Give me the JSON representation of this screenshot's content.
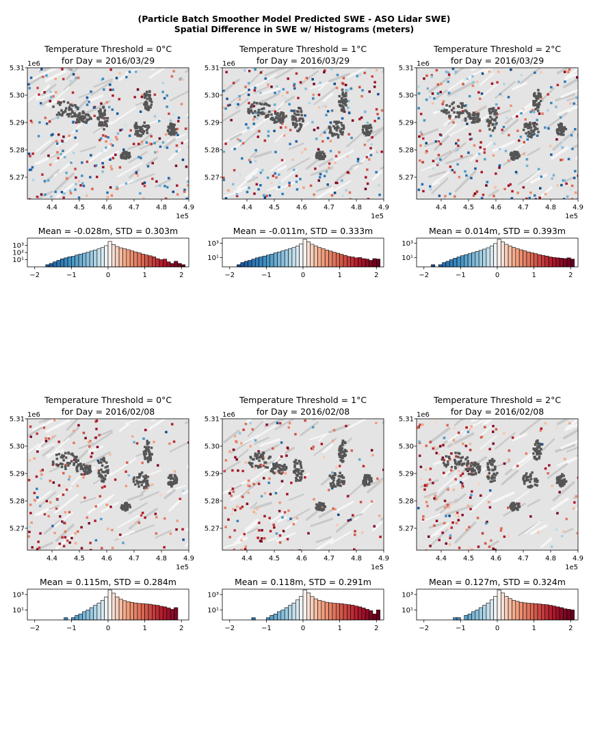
{
  "figure": {
    "suptitle_line1": "(Particle Batch Smoother Model Predicted SWE - ASO Lidar SWE)",
    "suptitle_line2": "Spatial Difference in SWE w/ Histograms (meters)"
  },
  "colors": {
    "negative_extreme": "#2b6aa8",
    "neutral": "#f7f7f7",
    "positive_extreme": "#7a0a1c",
    "masked_cells": "#555555",
    "hillshade": "#e4e4e4"
  },
  "chart_data": [
    {
      "type": "heatmap",
      "row": 1,
      "col": 1,
      "title_line1": "Temperature Threshold = 0°C",
      "title_line2": "for Day = 2016/03/29",
      "x_ticks": [
        "4.4",
        "4.5",
        "4.6",
        "4.7",
        "4.8",
        "4.9"
      ],
      "x_offset": "1e5",
      "y_ticks": [
        "5.31",
        "5.30",
        "5.29",
        "5.28",
        "5.27"
      ],
      "y_offset": "1e6",
      "xlim": [
        431000,
        490000
      ],
      "ylim": [
        5262000,
        5310000
      ],
      "colormap": "RdBu_r",
      "vmin": -2,
      "vmax": 2
    },
    {
      "type": "heatmap",
      "row": 1,
      "col": 2,
      "title_line1": "Temperature Threshold = 1°C",
      "title_line2": "for Day = 2016/03/29",
      "x_ticks": [
        "4.4",
        "4.5",
        "4.6",
        "4.7",
        "4.8",
        "4.9"
      ],
      "x_offset": "1e5",
      "y_ticks": [
        "5.31",
        "5.30",
        "5.29",
        "5.28",
        "5.27"
      ],
      "y_offset": "1e6",
      "xlim": [
        431000,
        490000
      ],
      "ylim": [
        5262000,
        5310000
      ],
      "colormap": "RdBu_r",
      "vmin": -2,
      "vmax": 2
    },
    {
      "type": "heatmap",
      "row": 1,
      "col": 3,
      "title_line1": "Temperature Threshold = 2°C",
      "title_line2": "for Day = 2016/03/29",
      "x_ticks": [
        "4.4",
        "4.5",
        "4.6",
        "4.7",
        "4.8",
        "4.9"
      ],
      "x_offset": "1e5",
      "y_ticks": [
        "5.31",
        "5.30",
        "5.29",
        "5.28",
        "5.27"
      ],
      "y_offset": "1e6",
      "xlim": [
        431000,
        490000
      ],
      "ylim": [
        5262000,
        5310000
      ],
      "colormap": "RdBu_r",
      "vmin": -2,
      "vmax": 2
    },
    {
      "type": "bar",
      "row": 1,
      "col": 1,
      "title": "Mean = -0.028m, STD = 0.303m",
      "x_ticks": [
        "−2",
        "−1",
        "0",
        "1",
        "2"
      ],
      "y_ticks": [
        "10³",
        "10²",
        "10¹"
      ],
      "yscale": "log",
      "xlim": [
        -2.2,
        2.2
      ],
      "bin_width": 0.1,
      "ylim": [
        1,
        10000
      ],
      "bins": [
        [
          -1.8,
          1
        ],
        [
          -1.7,
          2
        ],
        [
          -1.6,
          3
        ],
        [
          -1.5,
          5
        ],
        [
          -1.4,
          8
        ],
        [
          -1.3,
          13
        ],
        [
          -1.2,
          18
        ],
        [
          -1.1,
          25
        ],
        [
          -1.0,
          30
        ],
        [
          -0.9,
          45
        ],
        [
          -0.8,
          60
        ],
        [
          -0.7,
          80
        ],
        [
          -0.6,
          110
        ],
        [
          -0.5,
          160
        ],
        [
          -0.4,
          220
        ],
        [
          -0.3,
          320
        ],
        [
          -0.2,
          500
        ],
        [
          -0.1,
          900
        ],
        [
          0.0,
          3500
        ],
        [
          0.1,
          1300
        ],
        [
          0.2,
          700
        ],
        [
          0.3,
          450
        ],
        [
          0.4,
          330
        ],
        [
          0.5,
          250
        ],
        [
          0.6,
          170
        ],
        [
          0.7,
          120
        ],
        [
          0.8,
          90
        ],
        [
          0.9,
          60
        ],
        [
          1.0,
          45
        ],
        [
          1.1,
          35
        ],
        [
          1.2,
          25
        ],
        [
          1.3,
          14
        ],
        [
          1.4,
          10
        ],
        [
          1.5,
          12
        ],
        [
          1.6,
          5
        ],
        [
          1.7,
          3
        ],
        [
          1.8,
          6
        ],
        [
          1.9,
          3
        ],
        [
          2.0,
          2
        ]
      ]
    },
    {
      "type": "bar",
      "row": 1,
      "col": 2,
      "title": "Mean = -0.011m, STD = 0.333m",
      "x_ticks": [
        "−2",
        "−1",
        "0",
        "1",
        "2"
      ],
      "y_ticks": [
        "10³",
        "10¹"
      ],
      "yscale": "log",
      "xlim": [
        -2.2,
        2.2
      ],
      "bin_width": 0.1,
      "ylim": [
        0.5,
        5000
      ],
      "bins": [
        [
          -1.8,
          1
        ],
        [
          -1.7,
          2
        ],
        [
          -1.6,
          3
        ],
        [
          -1.5,
          4
        ],
        [
          -1.4,
          6
        ],
        [
          -1.3,
          9
        ],
        [
          -1.2,
          12
        ],
        [
          -1.1,
          16
        ],
        [
          -1.0,
          22
        ],
        [
          -0.9,
          30
        ],
        [
          -0.8,
          45
        ],
        [
          -0.7,
          60
        ],
        [
          -0.6,
          85
        ],
        [
          -0.5,
          120
        ],
        [
          -0.4,
          170
        ],
        [
          -0.3,
          250
        ],
        [
          -0.2,
          400
        ],
        [
          -0.1,
          800
        ],
        [
          0.0,
          3500
        ],
        [
          0.1,
          1500
        ],
        [
          0.2,
          700
        ],
        [
          0.3,
          400
        ],
        [
          0.4,
          250
        ],
        [
          0.5,
          170
        ],
        [
          0.6,
          110
        ],
        [
          0.7,
          80
        ],
        [
          0.8,
          55
        ],
        [
          0.9,
          40
        ],
        [
          1.0,
          28
        ],
        [
          1.1,
          20
        ],
        [
          1.2,
          14
        ],
        [
          1.3,
          12
        ],
        [
          1.4,
          9
        ],
        [
          1.5,
          10
        ],
        [
          1.6,
          7
        ],
        [
          1.7,
          6
        ],
        [
          1.8,
          4
        ],
        [
          1.9,
          7
        ],
        [
          2.0,
          6
        ]
      ]
    },
    {
      "type": "bar",
      "row": 1,
      "col": 3,
      "title": "Mean = 0.014m, STD = 0.393m",
      "x_ticks": [
        "−2",
        "−1",
        "0",
        "1",
        "2"
      ],
      "y_ticks": [
        "10³",
        "10¹"
      ],
      "yscale": "log",
      "xlim": [
        -2.2,
        2.2
      ],
      "bin_width": 0.1,
      "ylim": [
        0.5,
        5000
      ],
      "bins": [
        [
          -1.8,
          1
        ],
        [
          -1.6,
          1
        ],
        [
          -1.5,
          2
        ],
        [
          -1.4,
          3
        ],
        [
          -1.3,
          5
        ],
        [
          -1.2,
          8
        ],
        [
          -1.1,
          12
        ],
        [
          -1.0,
          18
        ],
        [
          -0.9,
          25
        ],
        [
          -0.8,
          35
        ],
        [
          -0.7,
          50
        ],
        [
          -0.6,
          70
        ],
        [
          -0.5,
          100
        ],
        [
          -0.4,
          150
        ],
        [
          -0.3,
          230
        ],
        [
          -0.2,
          400
        ],
        [
          -0.1,
          900
        ],
        [
          0.0,
          3500
        ],
        [
          0.1,
          1500
        ],
        [
          0.2,
          700
        ],
        [
          0.3,
          400
        ],
        [
          0.4,
          260
        ],
        [
          0.5,
          170
        ],
        [
          0.6,
          120
        ],
        [
          0.7,
          85
        ],
        [
          0.8,
          60
        ],
        [
          0.9,
          45
        ],
        [
          1.0,
          35
        ],
        [
          1.1,
          25
        ],
        [
          1.2,
          20
        ],
        [
          1.3,
          16
        ],
        [
          1.4,
          12
        ],
        [
          1.5,
          10
        ],
        [
          1.6,
          9
        ],
        [
          1.7,
          8
        ],
        [
          1.8,
          7
        ],
        [
          1.9,
          9
        ],
        [
          2.0,
          6
        ]
      ]
    },
    {
      "type": "heatmap",
      "row": 2,
      "col": 1,
      "title_line1": "Temperature Threshold = 0°C",
      "title_line2": "for Day = 2016/02/08",
      "x_ticks": [
        "4.4",
        "4.5",
        "4.6",
        "4.7",
        "4.8",
        "4.9"
      ],
      "x_offset": "1e5",
      "y_ticks": [
        "5.31",
        "5.30",
        "5.29",
        "5.28",
        "5.27"
      ],
      "y_offset": "1e6",
      "xlim": [
        431000,
        490000
      ],
      "ylim": [
        5262000,
        5310000
      ],
      "colormap": "RdBu_r",
      "vmin": -2,
      "vmax": 2
    },
    {
      "type": "heatmap",
      "row": 2,
      "col": 2,
      "title_line1": "Temperature Threshold = 1°C",
      "title_line2": "for Day = 2016/02/08",
      "x_ticks": [
        "4.4",
        "4.5",
        "4.6",
        "4.7",
        "4.8",
        "4.9"
      ],
      "x_offset": "1e5",
      "y_ticks": [
        "5.31",
        "5.30",
        "5.29",
        "5.28",
        "5.27"
      ],
      "y_offset": "1e6",
      "xlim": [
        431000,
        490000
      ],
      "ylim": [
        5262000,
        5310000
      ],
      "colormap": "RdBu_r",
      "vmin": -2,
      "vmax": 2
    },
    {
      "type": "heatmap",
      "row": 2,
      "col": 3,
      "title_line1": "Temperature Threshold = 2°C",
      "title_line2": "for Day = 2016/02/08",
      "x_ticks": [
        "4.4",
        "4.5",
        "4.6",
        "4.7",
        "4.8",
        "4.9"
      ],
      "x_offset": "1e5",
      "y_ticks": [
        "5.31",
        "5.30",
        "5.29",
        "5.28",
        "5.27"
      ],
      "y_offset": "1e6",
      "xlim": [
        431000,
        490000
      ],
      "ylim": [
        5262000,
        5310000
      ],
      "colormap": "RdBu_r",
      "vmin": -2,
      "vmax": 2
    },
    {
      "type": "bar",
      "row": 2,
      "col": 1,
      "title": "Mean = 0.115m, STD = 0.284m",
      "x_ticks": [
        "−2",
        "−1",
        "0",
        "1",
        "2"
      ],
      "y_ticks": [
        "10³",
        "10¹"
      ],
      "yscale": "log",
      "xlim": [
        -2.2,
        2.2
      ],
      "bin_width": 0.1,
      "ylim": [
        0.5,
        5000
      ],
      "bins": [
        [
          -1.2,
          1
        ],
        [
          -1.0,
          1
        ],
        [
          -0.9,
          2
        ],
        [
          -0.8,
          3
        ],
        [
          -0.7,
          6
        ],
        [
          -0.6,
          10
        ],
        [
          -0.5,
          20
        ],
        [
          -0.4,
          40
        ],
        [
          -0.3,
          80
        ],
        [
          -0.2,
          180
        ],
        [
          -0.1,
          500
        ],
        [
          0.0,
          4000
        ],
        [
          0.1,
          1500
        ],
        [
          0.2,
          500
        ],
        [
          0.3,
          250
        ],
        [
          0.4,
          160
        ],
        [
          0.5,
          120
        ],
        [
          0.6,
          95
        ],
        [
          0.7,
          80
        ],
        [
          0.8,
          70
        ],
        [
          0.9,
          65
        ],
        [
          1.0,
          60
        ],
        [
          1.1,
          55
        ],
        [
          1.2,
          45
        ],
        [
          1.3,
          40
        ],
        [
          1.4,
          30
        ],
        [
          1.5,
          25
        ],
        [
          1.6,
          18
        ],
        [
          1.7,
          12
        ],
        [
          1.8,
          20
        ]
      ]
    },
    {
      "type": "bar",
      "row": 2,
      "col": 2,
      "title": "Mean = 0.118m, STD = 0.291m",
      "x_ticks": [
        "−2",
        "−1",
        "0",
        "1",
        "2"
      ],
      "y_ticks": [
        "10³",
        "10¹"
      ],
      "yscale": "log",
      "xlim": [
        -2.2,
        2.2
      ],
      "bin_width": 0.1,
      "ylim": [
        0.5,
        5000
      ],
      "bins": [
        [
          -1.4,
          1
        ],
        [
          -1.0,
          1
        ],
        [
          -0.9,
          2
        ],
        [
          -0.8,
          3
        ],
        [
          -0.7,
          6
        ],
        [
          -0.6,
          10
        ],
        [
          -0.5,
          20
        ],
        [
          -0.4,
          40
        ],
        [
          -0.3,
          80
        ],
        [
          -0.2,
          200
        ],
        [
          -0.1,
          600
        ],
        [
          0.0,
          4000
        ],
        [
          0.1,
          1600
        ],
        [
          0.2,
          550
        ],
        [
          0.3,
          280
        ],
        [
          0.4,
          180
        ],
        [
          0.5,
          130
        ],
        [
          0.6,
          100
        ],
        [
          0.7,
          85
        ],
        [
          0.8,
          75
        ],
        [
          0.9,
          70
        ],
        [
          1.0,
          65
        ],
        [
          1.1,
          55
        ],
        [
          1.2,
          48
        ],
        [
          1.3,
          42
        ],
        [
          1.4,
          32
        ],
        [
          1.5,
          25
        ],
        [
          1.6,
          18
        ],
        [
          1.7,
          12
        ],
        [
          1.8,
          8
        ],
        [
          1.9,
          3
        ],
        [
          2.0,
          10
        ]
      ]
    },
    {
      "type": "bar",
      "row": 2,
      "col": 3,
      "title": "Mean = 0.127m, STD = 0.324m",
      "x_ticks": [
        "−2",
        "−1",
        "0",
        "1",
        "2"
      ],
      "y_ticks": [
        "10³",
        "10¹"
      ],
      "yscale": "log",
      "xlim": [
        -2.2,
        2.2
      ],
      "bin_width": 0.1,
      "ylim": [
        0.5,
        5000
      ],
      "bins": [
        [
          -1.2,
          1
        ],
        [
          -1.1,
          1
        ],
        [
          -0.9,
          2
        ],
        [
          -0.8,
          3
        ],
        [
          -0.7,
          6
        ],
        [
          -0.6,
          10
        ],
        [
          -0.5,
          20
        ],
        [
          -0.4,
          40
        ],
        [
          -0.3,
          80
        ],
        [
          -0.2,
          200
        ],
        [
          -0.1,
          600
        ],
        [
          0.0,
          4000
        ],
        [
          0.1,
          1600
        ],
        [
          0.2,
          600
        ],
        [
          0.3,
          300
        ],
        [
          0.4,
          180
        ],
        [
          0.5,
          130
        ],
        [
          0.6,
          100
        ],
        [
          0.7,
          85
        ],
        [
          0.8,
          75
        ],
        [
          0.9,
          70
        ],
        [
          1.0,
          65
        ],
        [
          1.1,
          60
        ],
        [
          1.2,
          52
        ],
        [
          1.3,
          48
        ],
        [
          1.4,
          40
        ],
        [
          1.5,
          32
        ],
        [
          1.6,
          25
        ],
        [
          1.7,
          20
        ],
        [
          1.8,
          14
        ],
        [
          1.9,
          12
        ],
        [
          2.0,
          10
        ]
      ]
    }
  ]
}
